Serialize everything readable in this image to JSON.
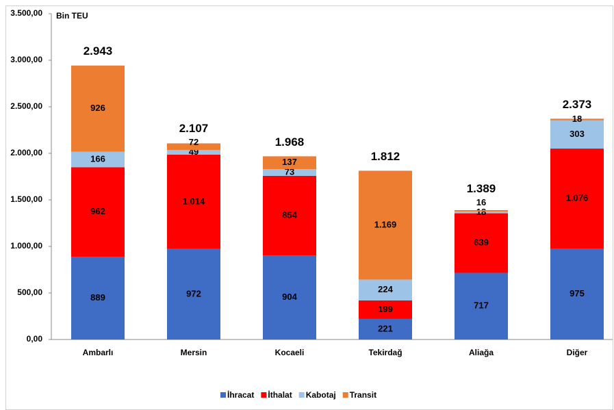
{
  "chart_data": {
    "type": "stacked_bar",
    "y_axis_label": "Bin TEU",
    "categories": [
      "Ambarlı",
      "Mersin",
      "Kocaeli",
      "Tekirdağ",
      "Aliağa",
      "Diğer"
    ],
    "series": [
      {
        "name": "İhracat",
        "color": "#3f6cc4",
        "values": [
          889,
          972,
          904,
          221,
          717,
          975
        ]
      },
      {
        "name": "İthalat",
        "color": "#ff0000",
        "values": [
          962,
          1014,
          854,
          199,
          639,
          1076
        ],
        "value_labels": [
          "962",
          "1.014",
          "854",
          "199",
          "639",
          "1.076"
        ]
      },
      {
        "name": "Kabotaj",
        "color": "#9dc3e6",
        "values": [
          166,
          49,
          73,
          224,
          18,
          303
        ]
      },
      {
        "name": "Transit",
        "color": "#ed7d31",
        "values": [
          926,
          72,
          137,
          1169,
          16,
          18
        ],
        "value_labels": [
          "926",
          "72",
          "137",
          "1.169",
          "16",
          "18"
        ]
      }
    ],
    "totals": [
      {
        "value": 2943,
        "label": "2.943"
      },
      {
        "value": 2107,
        "label": "2.107"
      },
      {
        "value": 1968,
        "label": "1.968"
      },
      {
        "value": 1812,
        "label": "1.812"
      },
      {
        "value": 1389,
        "label": "1.389"
      },
      {
        "value": 2373,
        "label": "2.373"
      }
    ],
    "ylim": [
      0,
      3500
    ],
    "yticks": [
      {
        "value": 0,
        "label": "0,00"
      },
      {
        "value": 500,
        "label": "500,00"
      },
      {
        "value": 1000,
        "label": "1.000,00"
      },
      {
        "value": 1500,
        "label": "1.500,00"
      },
      {
        "value": 2000,
        "label": "2.000,00"
      },
      {
        "value": 2500,
        "label": "2.500,00"
      },
      {
        "value": 3000,
        "label": "3.000,00"
      },
      {
        "value": 3500,
        "label": "3.500,00"
      }
    ],
    "grid": false
  }
}
